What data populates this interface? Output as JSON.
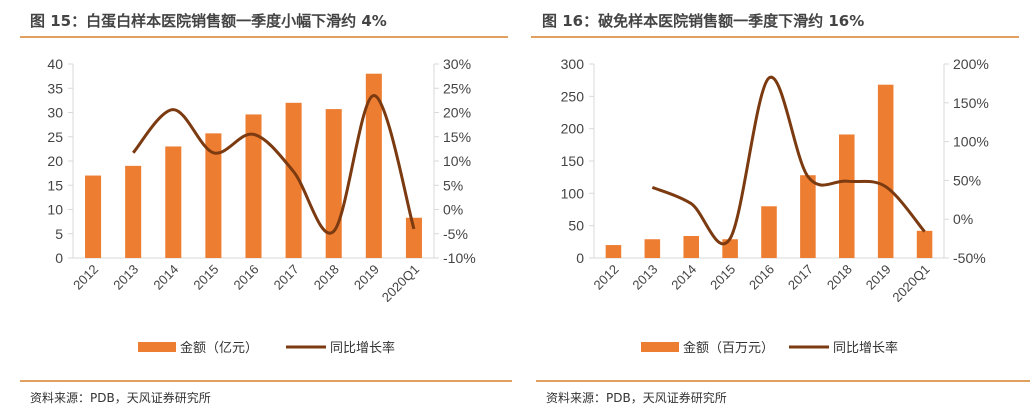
{
  "colors": {
    "bar": "#ED7D31",
    "line": "#7B3A10",
    "axis": "#D9D9D9",
    "rule": "#E0A060"
  },
  "chart_data": [
    {
      "type": "bar+line",
      "title": "图 15：白蛋白样本医院销售额一季度小幅下滑约 4%",
      "categories": [
        "2012",
        "2013",
        "2014",
        "2015",
        "2016",
        "2017",
        "2018",
        "2019",
        "2020Q1"
      ],
      "series": [
        {
          "name": "金额（亿元）",
          "type": "bar",
          "axis": "left",
          "values": [
            17,
            19,
            23,
            25.7,
            29.6,
            32,
            30.7,
            38,
            8.3
          ]
        },
        {
          "name": "同比增长率",
          "type": "line",
          "axis": "right",
          "unit": "%",
          "values": [
            null,
            11.7,
            20.6,
            11.7,
            15.5,
            7.8,
            -4.5,
            23.5,
            -4
          ]
        }
      ],
      "ylim_left": [
        0,
        40
      ],
      "yticks_left": [
        "0",
        "5",
        "10",
        "15",
        "20",
        "25",
        "30",
        "35",
        "40"
      ],
      "ylim_right": [
        -10,
        30
      ],
      "yticks_right": [
        "-10%",
        "-5%",
        "0%",
        "5%",
        "10%",
        "15%",
        "20%",
        "25%",
        "30%"
      ],
      "legend": "bottom",
      "grid": false,
      "source": "资料来源：PDB，天风证券研究所"
    },
    {
      "type": "bar+line",
      "title": "图 16：破免样本医院销售额一季度下滑约 16%",
      "categories": [
        "2012",
        "2013",
        "2014",
        "2015",
        "2016",
        "2017",
        "2018",
        "2019",
        "2020Q1"
      ],
      "series": [
        {
          "name": "金额（百万元）",
          "type": "bar",
          "axis": "left",
          "values": [
            20,
            29,
            34,
            29,
            80,
            128,
            191,
            268,
            42
          ]
        },
        {
          "name": "同比增长率",
          "type": "line",
          "axis": "right",
          "unit": "%",
          "values": [
            null,
            41,
            20,
            -25,
            182,
            55,
            49,
            42,
            -16
          ]
        }
      ],
      "ylim_left": [
        0,
        300
      ],
      "yticks_left": [
        "0",
        "50",
        "100",
        "150",
        "200",
        "250",
        "300"
      ],
      "ylim_right": [
        -50,
        200
      ],
      "yticks_right": [
        "-50%",
        "0%",
        "50%",
        "100%",
        "150%",
        "200%"
      ],
      "legend": "bottom",
      "grid": false,
      "source": "资料来源：PDB，天风证券研究所"
    }
  ]
}
